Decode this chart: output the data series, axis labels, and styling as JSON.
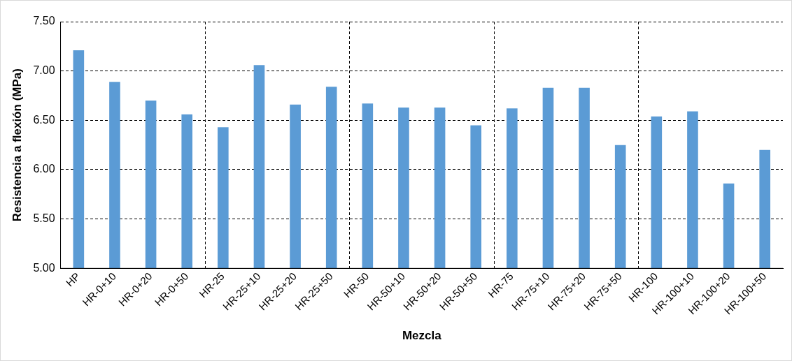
{
  "chart_data": {
    "type": "bar",
    "xlabel": "Mezcla",
    "ylabel": "Resistencia a flexión (MPa)",
    "categories": [
      "HP",
      "HR-0+10",
      "HR-0+20",
      "HR-0+50",
      "HR-25",
      "HR-25+10",
      "HR-25+20",
      "HR-25+50",
      "HR-50",
      "HR-50+10",
      "HR-50+20",
      "HR-50+50",
      "HR-75",
      "HR-75+10",
      "HR-75+20",
      "HR-75+50",
      "HR-100",
      "HR-100+10",
      "HR-100+20",
      "HR-100+50"
    ],
    "values": [
      7.21,
      6.89,
      6.7,
      6.56,
      6.43,
      7.06,
      6.66,
      6.84,
      6.67,
      6.63,
      6.63,
      6.45,
      6.62,
      6.83,
      6.83,
      6.25,
      6.54,
      6.59,
      5.86,
      6.2
    ],
    "color": "#5b9bd5",
    "ylim": [
      5.0,
      7.5
    ],
    "yticks": [
      {
        "value": 5.0,
        "label": "5.00"
      },
      {
        "value": 5.5,
        "label": "5.50"
      },
      {
        "value": 6.0,
        "label": "6.00"
      },
      {
        "value": 6.5,
        "label": "6.50"
      },
      {
        "value": 7.0,
        "label": "7.00"
      },
      {
        "value": 7.5,
        "label": "7.50"
      }
    ],
    "grid": true,
    "legend": false
  }
}
